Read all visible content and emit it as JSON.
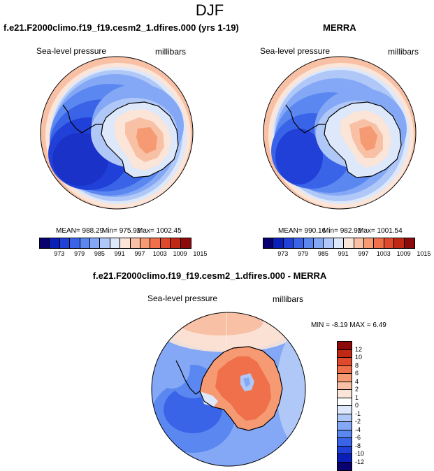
{
  "title": "DJF",
  "panel_left": {
    "title": "f.e21.F2000climo.f19_f19.cesm2_1.dfires.000 (yrs 1-19)",
    "variable": "Sea-level pressure",
    "units": "millibars",
    "mean_label": "MEAN= 988.29",
    "min_label": "Min= 975.92",
    "max_label": "Max= 1002.45",
    "colorbar_ticks": [
      "973",
      "979",
      "985",
      "991",
      "997",
      "1003",
      "1009",
      "1015"
    ]
  },
  "panel_right": {
    "title": "MERRA",
    "variable": "Sea-level pressure",
    "units": "millibars",
    "mean_label": "MEAN= 990.16",
    "min_label": "Min= 982.92",
    "max_label": "Max= 1001.54",
    "colorbar_ticks": [
      "973",
      "979",
      "985",
      "991",
      "997",
      "1003",
      "1009",
      "1015"
    ]
  },
  "panel_diff": {
    "title": "f.e21.F2000climo.f19_f19.cesm2_1.dfires.000 - MERRA",
    "variable": "Sea-level pressure",
    "units": "millibars",
    "minmax_label": "MIN = -8.19 MAX = 6.49",
    "colorbar_ticks": [
      "12",
      "10",
      "8",
      "6",
      "4",
      "2",
      "1",
      "0",
      "-1",
      "-2",
      "-4",
      "-6",
      "-8",
      "-10",
      "-12"
    ]
  },
  "colors": {
    "abs_scale": [
      "#08006e",
      "#0a1fb8",
      "#2040d8",
      "#3a64e8",
      "#5b88f0",
      "#84a8f5",
      "#b0c8f8",
      "#dde8fb",
      "#fbe4d8",
      "#f8c0a4",
      "#f59a72",
      "#ef704a",
      "#e04a2c",
      "#c02814",
      "#8c0a0a"
    ],
    "diff_scale": [
      "#8c0a0a",
      "#c02814",
      "#e04a2c",
      "#ef704a",
      "#f59a72",
      "#f8c0a4",
      "#fbe4d8",
      "#ffffff",
      "#dde8fb",
      "#b0c8f8",
      "#84a8f5",
      "#5b88f0",
      "#3a64e8",
      "#2040d8",
      "#0a1fb8",
      "#08006e"
    ]
  }
}
